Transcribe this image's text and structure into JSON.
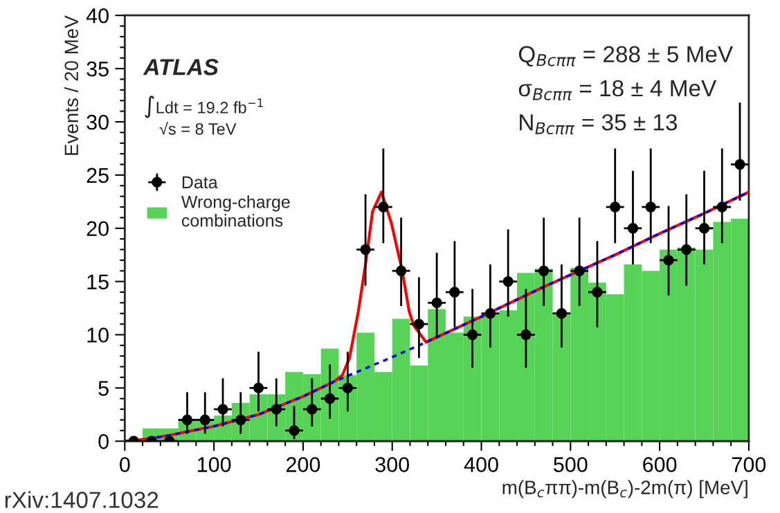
{
  "chart_data": {
    "type": "histogram",
    "xlabel": "m(B$_{c}$ππ)-m(B$_{c}$)-2m(π) [MeV]",
    "ylabel": "Events / 20 MeV",
    "xlim": [
      0,
      700
    ],
    "xticks": [
      0,
      100,
      200,
      300,
      400,
      500,
      600,
      700
    ],
    "ylim": [
      0,
      40
    ],
    "yticks": [
      0,
      5,
      10,
      15,
      20,
      25,
      30,
      35,
      40
    ],
    "grid": false,
    "legend": "top left",
    "series": [
      {
        "name": "Data",
        "type": "scatter",
        "color": "#000000",
        "marker": "circle",
        "xerrors": [
          10,
          10,
          10,
          10,
          10,
          10,
          10,
          10,
          10,
          10,
          10,
          10,
          10,
          10,
          10,
          10,
          10,
          10,
          10,
          10,
          10,
          10,
          10,
          10,
          10,
          10,
          10,
          10,
          10,
          10,
          10,
          10,
          10,
          10,
          10
        ],
        "x": [
          10,
          30,
          50,
          70,
          90,
          110,
          130,
          150,
          170,
          190,
          210,
          230,
          250,
          270,
          290,
          310,
          330,
          350,
          370,
          390,
          410,
          430,
          450,
          470,
          490,
          510,
          530,
          550,
          570,
          590,
          610,
          630,
          650,
          670,
          690
        ],
        "values": [
          0,
          0,
          0,
          2,
          2,
          3,
          2,
          5,
          3,
          1,
          3,
          4,
          5,
          18,
          22,
          16,
          11,
          13,
          14,
          10,
          12,
          15,
          10,
          16,
          12,
          16,
          14,
          22,
          20,
          22,
          17,
          18,
          20,
          22,
          26
        ],
        "errors": [
          null,
          null,
          null,
          [
            0.7,
            4.6
          ],
          [
            0.7,
            4.6
          ],
          [
            1.4,
            5.9
          ],
          [
            0.7,
            4.6
          ],
          [
            2.8,
            8.4
          ],
          [
            1.4,
            5.9
          ],
          [
            0.2,
            3.3
          ],
          [
            1.4,
            5.9
          ],
          [
            2.1,
            7.2
          ],
          [
            2.8,
            8.4
          ],
          [
            14.6,
            23.2
          ],
          [
            18.6,
            27.5
          ],
          [
            12.7,
            21.0
          ],
          [
            7.8,
            15.4
          ],
          [
            9.7,
            17.7
          ],
          [
            10.7,
            18.8
          ],
          [
            6.9,
            14.3
          ],
          [
            8.8,
            16.6
          ],
          [
            11.7,
            19.9
          ],
          [
            6.9,
            14.3
          ],
          [
            12.7,
            21.0
          ],
          [
            8.8,
            16.6
          ],
          [
            12.7,
            21.0
          ],
          [
            10.7,
            18.8
          ],
          [
            18.6,
            27.5
          ],
          [
            16.6,
            25.4
          ],
          [
            18.6,
            27.5
          ],
          [
            13.7,
            22.1
          ],
          [
            14.6,
            23.2
          ],
          [
            16.6,
            25.4
          ],
          [
            18.6,
            27.5
          ],
          [
            22.6,
            31.8
          ]
        ]
      },
      {
        "name": "Wrong-charge\ncombinations",
        "color": "#57d357",
        "bins": [
          0,
          20,
          40,
          60,
          80,
          100,
          120,
          140,
          160,
          180,
          200,
          220,
          240,
          260,
          280,
          300,
          320,
          340,
          360,
          380,
          400,
          420,
          440,
          460,
          480,
          500,
          520,
          540,
          560,
          580,
          600,
          620,
          640,
          660,
          680,
          700
        ],
        "values": [
          0,
          1.2,
          1.2,
          2.1,
          2.1,
          2.4,
          3.6,
          4.4,
          4.4,
          6.5,
          6.3,
          8.7,
          6.2,
          10.2,
          6.5,
          11.5,
          7.1,
          12.4,
          10.2,
          11.7,
          12.0,
          12.3,
          15.8,
          16.2,
          12.1,
          16.3,
          14.9,
          13.8,
          16.6,
          16.0,
          18.0,
          18.2,
          18.0,
          20.6,
          20.9
        ]
      },
      {
        "type": "line",
        "color": "#ff0000",
        "line_style": "solid",
        "x": [
          0,
          25,
          50,
          100,
          150,
          200,
          235,
          244,
          252,
          262,
          270,
          278,
          288,
          299,
          311,
          319,
          324,
          338,
          400,
          470,
          550,
          600,
          650,
          700
        ],
        "values": [
          0,
          0.2,
          0.55,
          1.4,
          2.5,
          4.2,
          5.6,
          6.2,
          7.8,
          12.2,
          16.6,
          21.6,
          23.4,
          20.5,
          16.1,
          12.2,
          10.9,
          9.3,
          11.7,
          14.5,
          17.5,
          19.5,
          21.4,
          23.4
        ]
      },
      {
        "type": "line",
        "color": "#0000ff",
        "line_style": "dashed",
        "x": [
          25,
          50,
          100,
          150,
          200,
          235,
          300,
          338,
          400,
          470,
          550,
          600,
          650,
          700
        ],
        "values": [
          0.2,
          0.55,
          1.4,
          2.5,
          4.2,
          5.6,
          7.9,
          9.3,
          11.7,
          14.5,
          17.5,
          19.5,
          21.4,
          23.4
        ]
      }
    ],
    "annotations": [
      "ATLAS",
      "∫Ldt = 19.2 fb$^{−1}$",
      "√s = 8 TeV",
      "Q$_{Bcππ}$ = 288 ± 5 MeV",
      "σ$_{Bcππ}$ = 18 ± 4 MeV",
      "N$_{Bcππ}$ = 35 ± 13",
      "rXiv:1407.1032"
    ]
  }
}
